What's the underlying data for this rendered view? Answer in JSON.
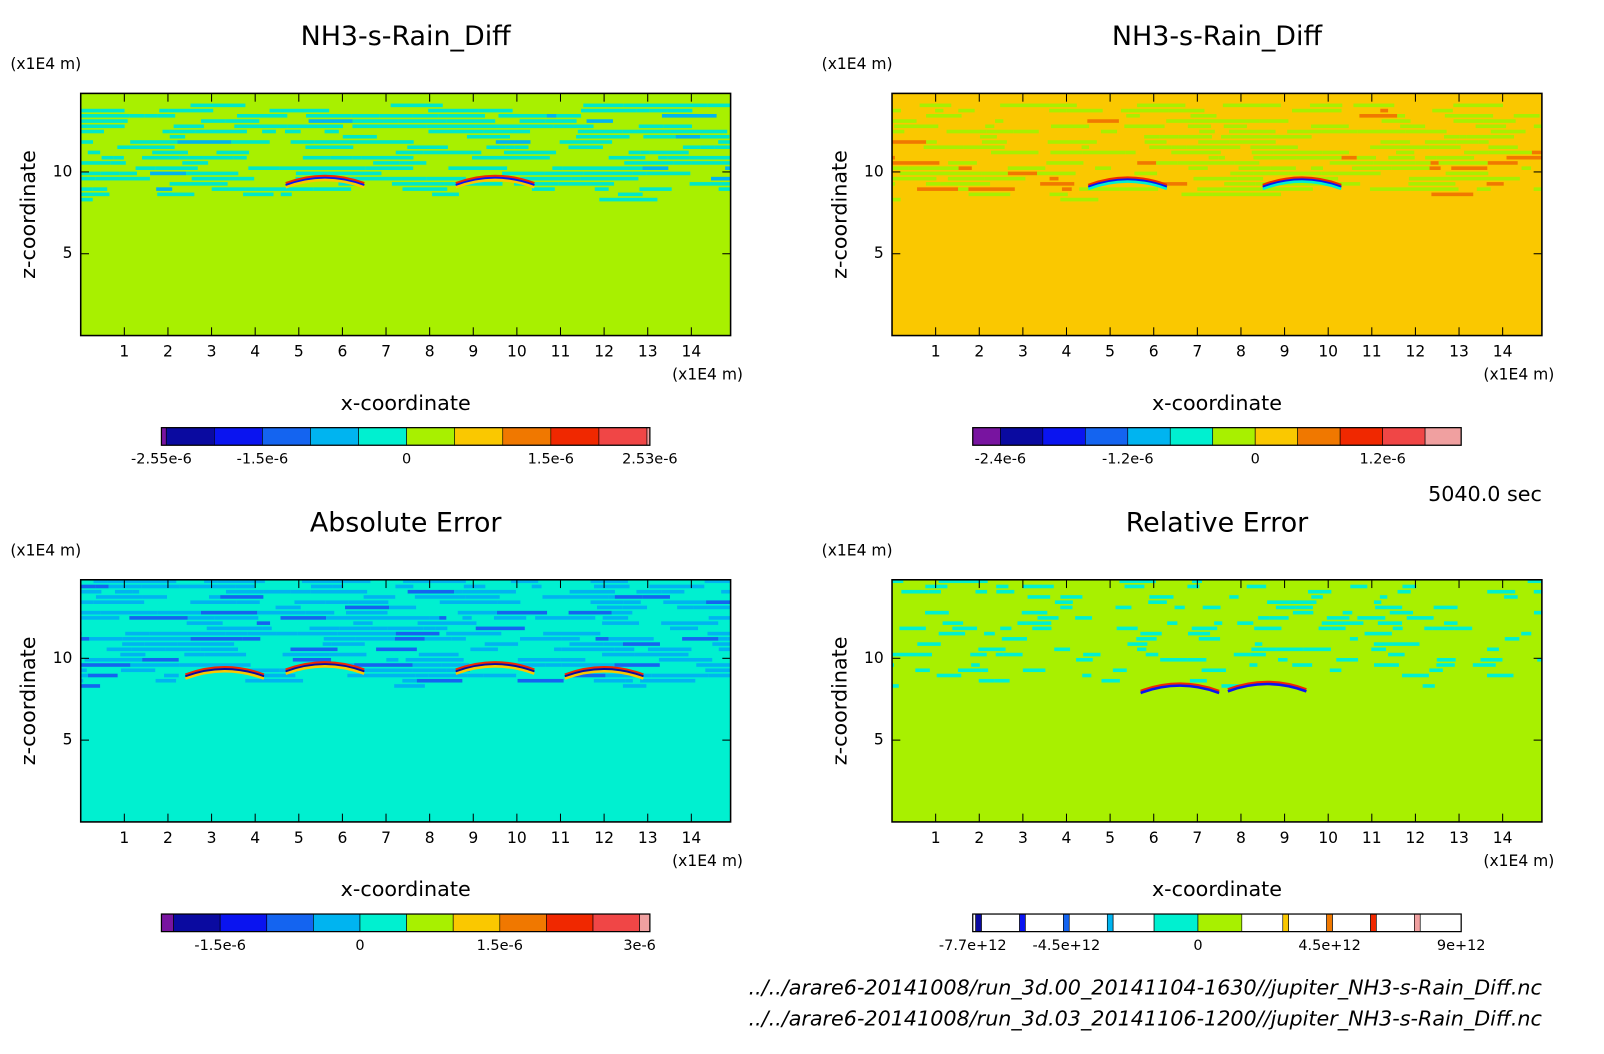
{
  "chart_data": [
    {
      "type": "contour",
      "title": "NH3-s-Rain_Diff",
      "xlabel": "x-coordinate",
      "ylabel": "z-coordinate",
      "x_unit": "(x1E4 m)",
      "y_unit": "(x1E4 m)",
      "xlim": [
        0,
        14.9
      ],
      "ylim": [
        0,
        14.8
      ],
      "xticks": [
        1,
        2,
        3,
        4,
        5,
        6,
        7,
        8,
        9,
        10,
        11,
        12,
        13,
        14
      ],
      "yticks": [
        5,
        10
      ],
      "background": "#a8f000",
      "pattern_colors": [
        "#00e8c8",
        "#00b4f0"
      ],
      "accent_colors": [
        "#f02800",
        "#0a14f0",
        "#fac800"
      ],
      "colorbar": {
        "bounds": [
          -2.55e-06,
          -2.5e-06,
          -2e-06,
          -1.5e-06,
          -1e-06,
          -5e-07,
          0,
          5e-07,
          1e-06,
          1.5e-06,
          2e-06,
          2.5e-06,
          2.53e-06
        ],
        "colors": [
          "#7814a0",
          "#0a0aa0",
          "#0a14f0",
          "#1464f0",
          "#00b4f0",
          "#00f0d0",
          "#a8f000",
          "#fac800",
          "#f07800",
          "#f02800",
          "#f04646",
          "#f0a0a0"
        ],
        "ticks": [
          {
            "value": -2.55e-06,
            "label": "-2.55e-6"
          },
          {
            "value": -1.5e-06,
            "label": "-1.5e-6"
          },
          0,
          {
            "value": 1.5e-06,
            "label": "1.5e-6"
          },
          {
            "value": 2.53e-06,
            "label": "2.53e-6"
          }
        ]
      }
    },
    {
      "type": "contour",
      "title": "NH3-s-Rain_Diff",
      "xlabel": "x-coordinate",
      "ylabel": "z-coordinate",
      "x_unit": "(x1E4 m)",
      "y_unit": "(x1E4 m)",
      "xlim": [
        0,
        14.9
      ],
      "ylim": [
        0,
        14.8
      ],
      "xticks": [
        1,
        2,
        3,
        4,
        5,
        6,
        7,
        8,
        9,
        10,
        11,
        12,
        13,
        14
      ],
      "yticks": [
        5,
        10
      ],
      "background": "#fac800",
      "pattern_colors": [
        "#a8f000",
        "#f07800"
      ],
      "accent_colors": [
        "#f02800",
        "#0a14f0",
        "#00f0d0"
      ],
      "colorbar": {
        "bounds": [
          -2.66e-06,
          -2.4e-06,
          -2e-06,
          -1.6e-06,
          -1.2e-06,
          -8e-07,
          -4e-07,
          0,
          4e-07,
          8e-07,
          1.2e-06,
          1.6e-06,
          1.94e-06
        ],
        "colors": [
          "#7814a0",
          "#0a0aa0",
          "#0a14f0",
          "#1464f0",
          "#00b4f0",
          "#00f0d0",
          "#a8f000",
          "#fac800",
          "#f07800",
          "#f02800",
          "#f04646",
          "#f0a0a0"
        ],
        "ticks": [
          {
            "value": -2.4e-06,
            "label": "-2.4e-6"
          },
          {
            "value": -1.2e-06,
            "label": "-1.2e-6"
          },
          0,
          {
            "value": 1.2e-06,
            "label": "1.2e-6"
          }
        ]
      }
    },
    {
      "type": "contour",
      "title": "Absolute Error",
      "xlabel": "x-coordinate",
      "ylabel": "z-coordinate",
      "x_unit": "(x1E4 m)",
      "y_unit": "(x1E4 m)",
      "xlim": [
        0,
        14.9
      ],
      "ylim": [
        0,
        14.8
      ],
      "xticks": [
        1,
        2,
        3,
        4,
        5,
        6,
        7,
        8,
        9,
        10,
        11,
        12,
        13,
        14
      ],
      "yticks": [
        5,
        10
      ],
      "background": "#00f0d0",
      "pattern_colors": [
        "#00b4f0",
        "#1464f0"
      ],
      "accent_colors": [
        "#f02800",
        "#0a0aa0",
        "#fac800"
      ],
      "colorbar": {
        "bounds": [
          -2.13e-06,
          -2e-06,
          -1.5e-06,
          -1e-06,
          -5e-07,
          0,
          5e-07,
          1e-06,
          1.5e-06,
          2e-06,
          2.5e-06,
          3e-06,
          3.11e-06
        ],
        "colors": [
          "#7814a0",
          "#0a0aa0",
          "#0a14f0",
          "#1464f0",
          "#00b4f0",
          "#00f0d0",
          "#a8f000",
          "#fac800",
          "#f07800",
          "#f02800",
          "#f04646",
          "#f0a0a0"
        ],
        "ticks": [
          {
            "value": -1.5e-06,
            "label": "-1.5e-6"
          },
          0,
          {
            "value": 1.5e-06,
            "label": "1.5e-6"
          },
          {
            "value": 3e-06,
            "label": "3e-6"
          }
        ]
      }
    },
    {
      "type": "contour",
      "title": "Relative Error",
      "xlabel": "x-coordinate",
      "ylabel": "z-coordinate",
      "x_unit": "(x1E4 m)",
      "y_unit": "(x1E4 m)",
      "xlim": [
        0,
        14.9
      ],
      "ylim": [
        0,
        14.8
      ],
      "xticks": [
        1,
        2,
        3,
        4,
        5,
        6,
        7,
        8,
        9,
        10,
        11,
        12,
        13,
        14
      ],
      "yticks": [
        5,
        10
      ],
      "background": "#a8f000",
      "pattern_colors": [
        "#00f0d0"
      ],
      "accent_colors": [
        "#f02800",
        "#0a14f0"
      ],
      "colorbar": {
        "bounds": [
          -7700000000000.0,
          -7600000000000.0,
          -7400000000000.0,
          -6100000000000.0,
          -5900000000000.0,
          -4600000000000.0,
          -4400000000000.0,
          -3100000000000.0,
          -2900000000000.0,
          -1500000000000.0,
          0,
          1500000000000.0,
          2900000000000.0,
          3100000000000.0,
          4400000000000.0,
          4600000000000.0,
          5900000000000.0,
          6100000000000.0,
          7400000000000.0,
          7600000000000.0,
          9000000000000.0
        ],
        "colors": [
          "#ffffff",
          "#0a0aa0",
          "#ffffff",
          "#0a14f0",
          "#ffffff",
          "#1464f0",
          "#ffffff",
          "#00b4f0",
          "#ffffff",
          "#00f0d0",
          "#a8f000",
          "#ffffff",
          "#fac800",
          "#ffffff",
          "#f07800",
          "#ffffff",
          "#f02800",
          "#ffffff",
          "#f0a0a0",
          "#ffffff"
        ],
        "ticks": [
          {
            "value": -7700000000000.0,
            "label": "-7.7e+12"
          },
          {
            "value": -4500000000000.0,
            "label": "-4.5e+12"
          },
          0,
          {
            "value": 4500000000000.0,
            "label": "4.5e+12"
          },
          {
            "value": 9000000000000.0,
            "label": "9e+12"
          }
        ]
      }
    }
  ],
  "time_label": "5040.0 sec",
  "footer": [
    "../../arare6-20141008/run_3d.00_20141104-1630//jupiter_NH3-s-Rain_Diff.nc",
    "../../arare6-20141008/run_3d.03_20141106-1200//jupiter_NH3-s-Rain_Diff.nc"
  ]
}
